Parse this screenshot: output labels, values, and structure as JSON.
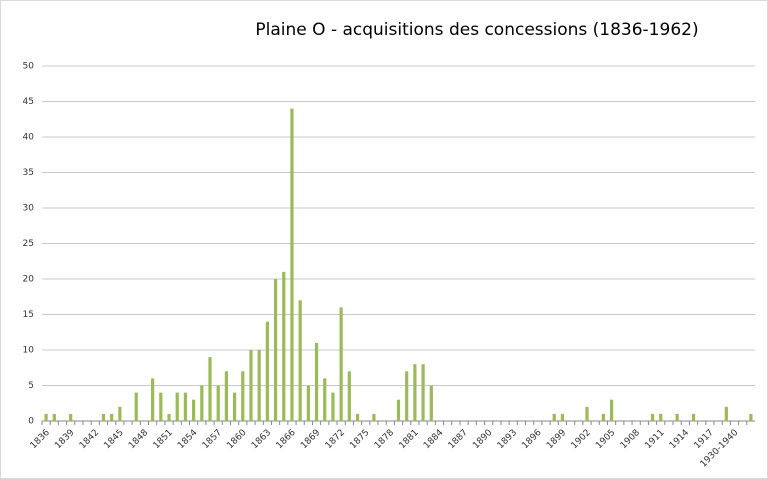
{
  "chart_data": {
    "type": "bar",
    "title": "Plaine O - acquisitions des concessions (1836-1962)",
    "categories": [
      "1836",
      null,
      null,
      "1839",
      null,
      null,
      "1842",
      null,
      null,
      "1845",
      null,
      null,
      "1848",
      null,
      null,
      "1851",
      null,
      null,
      "1854",
      null,
      null,
      "1857",
      null,
      null,
      "1860",
      null,
      null,
      "1863",
      null,
      null,
      "1866",
      null,
      null,
      "1869",
      null,
      null,
      "1872",
      null,
      null,
      "1875",
      null,
      null,
      "1878",
      null,
      null,
      "1881",
      null,
      null,
      "1884",
      null,
      null,
      "1887",
      null,
      null,
      "1890",
      null,
      null,
      "1893",
      null,
      null,
      "1896",
      null,
      null,
      "1899",
      null,
      null,
      "1902",
      null,
      null,
      "1905",
      null,
      null,
      "1908",
      null,
      null,
      "1911",
      null,
      null,
      "1914",
      null,
      null,
      "1917",
      null,
      null,
      "1930-1940",
      null,
      null
    ],
    "values": [
      1,
      1,
      0,
      1,
      0,
      0,
      0,
      1,
      1,
      2,
      0,
      4,
      0,
      6,
      4,
      1,
      4,
      4,
      3,
      5,
      9,
      5,
      7,
      4,
      7,
      10,
      10,
      14,
      20,
      21,
      44,
      17,
      5,
      11,
      6,
      4,
      16,
      7,
      1,
      0,
      1,
      0,
      0,
      3,
      7,
      8,
      8,
      5,
      0,
      0,
      0,
      0,
      0,
      0,
      0,
      0,
      0,
      0,
      0,
      0,
      0,
      0,
      1,
      1,
      0,
      0,
      2,
      0,
      1,
      3,
      0,
      0,
      0,
      0,
      1,
      1,
      0,
      1,
      0,
      1,
      0,
      0,
      0,
      2,
      0,
      0,
      1
    ],
    "color": "#9bbb59",
    "ylim": [
      0,
      50
    ],
    "yticks": [
      0,
      5,
      10,
      15,
      20,
      25,
      30,
      35,
      40,
      45,
      50
    ],
    "grid": true
  }
}
